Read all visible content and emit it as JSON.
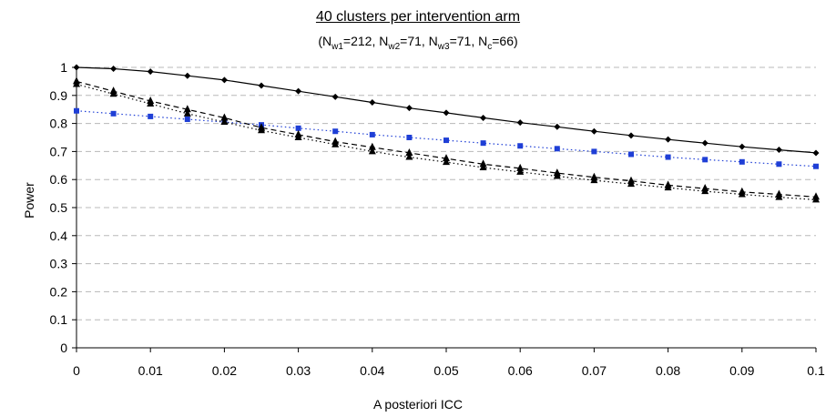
{
  "chart_data": {
    "type": "line",
    "title": "40 clusters per intervention arm",
    "subtitle_parts": [
      {
        "t": "(N",
        "sub": false
      },
      {
        "t": "w1",
        "sub": true
      },
      {
        "t": "=212, N",
        "sub": false
      },
      {
        "t": "w2",
        "sub": true
      },
      {
        "t": "=71, N",
        "sub": false
      },
      {
        "t": "w3",
        "sub": true
      },
      {
        "t": "=71, N",
        "sub": false
      },
      {
        "t": "c",
        "sub": true
      },
      {
        "t": "=66)",
        "sub": false
      }
    ],
    "xlabel": "A posteriori ICC",
    "ylabel": "Power",
    "xlim": [
      0,
      0.1
    ],
    "ylim": [
      0,
      1
    ],
    "x_ticks": [
      "0",
      "0.01",
      "0.02",
      "0.03",
      "0.04",
      "0.05",
      "0.06",
      "0.07",
      "0.08",
      "0.09",
      "0.1"
    ],
    "y_ticks": [
      "0",
      "0.1",
      "0.2",
      "0.3",
      "0.4",
      "0.5",
      "0.6",
      "0.7",
      "0.8",
      "0.9",
      "1"
    ],
    "grid": "horizontal-dashed",
    "x": [
      0,
      0.005,
      0.01,
      0.015,
      0.02,
      0.025,
      0.03,
      0.035,
      0.04,
      0.045,
      0.05,
      0.055,
      0.06,
      0.065,
      0.07,
      0.075,
      0.08,
      0.085,
      0.09,
      0.095,
      0.1
    ],
    "series": [
      {
        "style": "solid",
        "marker": "diamond",
        "color": "#000000",
        "values": [
          1.0,
          0.995,
          0.985,
          0.97,
          0.955,
          0.935,
          0.915,
          0.895,
          0.875,
          0.855,
          0.838,
          0.82,
          0.803,
          0.788,
          0.772,
          0.757,
          0.743,
          0.73,
          0.717,
          0.706,
          0.695
        ]
      },
      {
        "style": "dotted",
        "marker": "square",
        "color": "#1f3fd6",
        "values": [
          0.845,
          0.835,
          0.825,
          0.815,
          0.805,
          0.795,
          0.783,
          0.772,
          0.76,
          0.75,
          0.74,
          0.73,
          0.72,
          0.71,
          0.7,
          0.69,
          0.68,
          0.671,
          0.663,
          0.655,
          0.647
        ]
      },
      {
        "style": "dashed",
        "marker": "triangle",
        "color": "#000000",
        "values": [
          0.95,
          0.915,
          0.88,
          0.85,
          0.82,
          0.785,
          0.76,
          0.735,
          0.715,
          0.695,
          0.675,
          0.655,
          0.64,
          0.623,
          0.608,
          0.595,
          0.58,
          0.568,
          0.556,
          0.547,
          0.538
        ]
      },
      {
        "style": "dashdot",
        "marker": "triangle",
        "color": "#000000",
        "values": [
          0.94,
          0.905,
          0.87,
          0.835,
          0.805,
          0.775,
          0.75,
          0.725,
          0.7,
          0.68,
          0.662,
          0.643,
          0.627,
          0.612,
          0.597,
          0.584,
          0.571,
          0.558,
          0.547,
          0.537,
          0.528
        ]
      }
    ]
  }
}
